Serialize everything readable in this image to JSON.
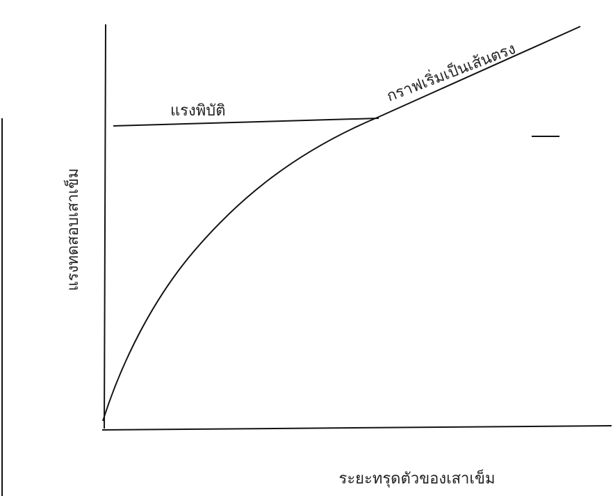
{
  "axes": {
    "y_label": "แรงทดสอบเสาเข็ม",
    "x_label": "ระยะทรุดตัวของเสาเข็ม"
  },
  "annotations": {
    "failure_load": "แรงพิบัติ",
    "linear_part": "กราฟเริ่มเป็นเส้นตรง"
  }
}
